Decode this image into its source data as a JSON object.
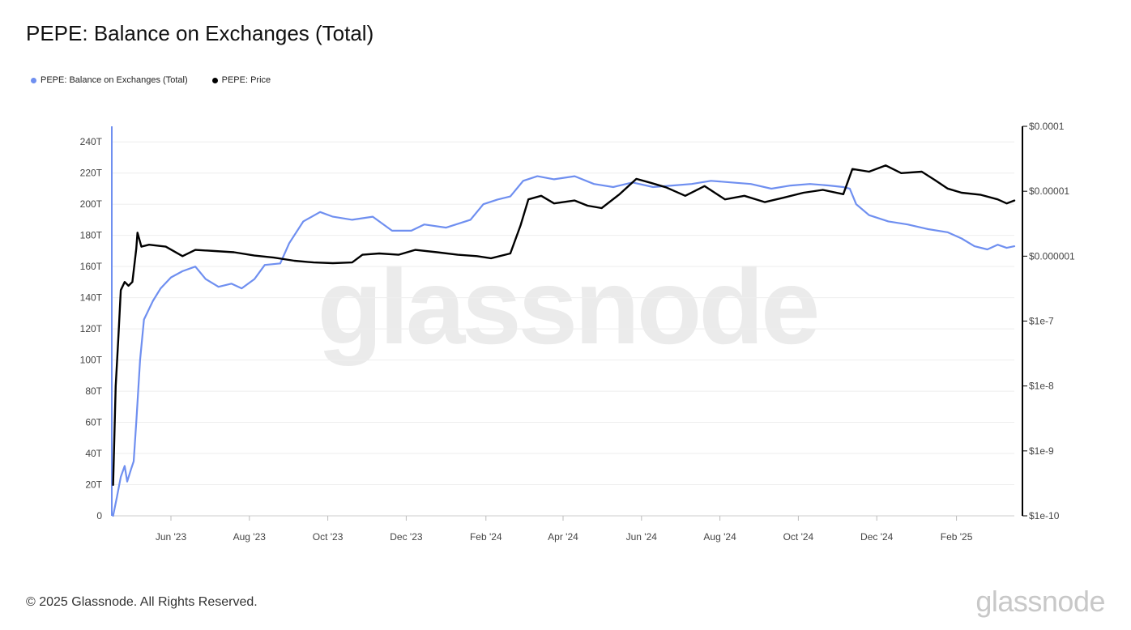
{
  "title": "PEPE: Balance on Exchanges (Total)",
  "legend": [
    {
      "label": "PEPE: Balance on Exchanges (Total)",
      "color": "#6f8ff0"
    },
    {
      "label": "PEPE: Price",
      "color": "#000000"
    }
  ],
  "watermark": "glassnode",
  "footer": {
    "copyright": "© 2025 Glassnode. All Rights Reserved.",
    "brand": "glassnode"
  },
  "chart_data": {
    "type": "line",
    "x_ticks": [
      "Jun '23",
      "Aug '23",
      "Oct '23",
      "Dec '23",
      "Feb '24",
      "Apr '24",
      "Jun '24",
      "Aug '24",
      "Oct '24",
      "Dec '24",
      "Feb '25"
    ],
    "x_range": [
      "2023-04-16",
      "2025-03-18"
    ],
    "y_left": {
      "ticks": [
        "0",
        "20T",
        "40T",
        "60T",
        "80T",
        "100T",
        "120T",
        "140T",
        "160T",
        "180T",
        "200T",
        "220T",
        "240T"
      ],
      "range": [
        0,
        250
      ],
      "unit": "T"
    },
    "y_right": {
      "scale": "log",
      "ticks": [
        "$1e-10",
        "$1e-9",
        "$1e-8",
        "$1e-7",
        "$0.000001",
        "$0.00001",
        "$0.0001"
      ],
      "range": [
        1e-10,
        0.0001
      ]
    },
    "grid": true,
    "legend_position": "top-left",
    "series": [
      {
        "name": "PEPE: Balance on Exchanges (Total)",
        "axis": "left",
        "color": "#6f8ff0",
        "points": [
          [
            "2023-04-17",
            0
          ],
          [
            "2023-04-20",
            12
          ],
          [
            "2023-04-23",
            25
          ],
          [
            "2023-04-26",
            32
          ],
          [
            "2023-04-28",
            22
          ],
          [
            "2023-05-01",
            30
          ],
          [
            "2023-05-03",
            35
          ],
          [
            "2023-05-05",
            60
          ],
          [
            "2023-05-08",
            100
          ],
          [
            "2023-05-11",
            126
          ],
          [
            "2023-05-18",
            138
          ],
          [
            "2023-05-24",
            146
          ],
          [
            "2023-06-01",
            153
          ],
          [
            "2023-06-10",
            157
          ],
          [
            "2023-06-20",
            160
          ],
          [
            "2023-06-28",
            152
          ],
          [
            "2023-07-08",
            147
          ],
          [
            "2023-07-18",
            149
          ],
          [
            "2023-07-26",
            146
          ],
          [
            "2023-08-05",
            152
          ],
          [
            "2023-08-13",
            161
          ],
          [
            "2023-08-25",
            162
          ],
          [
            "2023-09-01",
            175
          ],
          [
            "2023-09-12",
            189
          ],
          [
            "2023-09-25",
            195
          ],
          [
            "2023-10-05",
            192
          ],
          [
            "2023-10-20",
            190
          ],
          [
            "2023-11-05",
            192
          ],
          [
            "2023-11-20",
            183
          ],
          [
            "2023-12-05",
            183
          ],
          [
            "2023-12-15",
            187
          ],
          [
            "2024-01-01",
            185
          ],
          [
            "2024-01-20",
            190
          ],
          [
            "2024-01-30",
            200
          ],
          [
            "2024-02-10",
            203
          ],
          [
            "2024-02-20",
            205
          ],
          [
            "2024-03-01",
            215
          ],
          [
            "2024-03-12",
            218
          ],
          [
            "2024-03-25",
            216
          ],
          [
            "2024-04-10",
            218
          ],
          [
            "2024-04-25",
            213
          ],
          [
            "2024-05-10",
            211
          ],
          [
            "2024-05-25",
            214
          ],
          [
            "2024-06-10",
            211
          ],
          [
            "2024-06-25",
            212
          ],
          [
            "2024-07-10",
            213
          ],
          [
            "2024-07-25",
            215
          ],
          [
            "2024-08-10",
            214
          ],
          [
            "2024-08-25",
            213
          ],
          [
            "2024-09-10",
            210
          ],
          [
            "2024-09-25",
            212
          ],
          [
            "2024-10-10",
            213
          ],
          [
            "2024-10-25",
            212
          ],
          [
            "2024-11-05",
            211
          ],
          [
            "2024-11-10",
            210
          ],
          [
            "2024-11-15",
            200
          ],
          [
            "2024-11-25",
            193
          ],
          [
            "2024-12-10",
            189
          ],
          [
            "2024-12-25",
            187
          ],
          [
            "2025-01-10",
            184
          ],
          [
            "2025-01-25",
            182
          ],
          [
            "2025-02-05",
            178
          ],
          [
            "2025-02-15",
            173
          ],
          [
            "2025-02-25",
            171
          ],
          [
            "2025-03-05",
            174
          ],
          [
            "2025-03-12",
            172
          ],
          [
            "2025-03-18",
            173
          ]
        ]
      },
      {
        "name": "PEPE: Price",
        "axis": "right",
        "color": "#000000",
        "points": [
          [
            "2023-04-17",
            3e-10
          ],
          [
            "2023-04-19",
            1e-08
          ],
          [
            "2023-04-21",
            5e-08
          ],
          [
            "2023-04-23",
            3e-07
          ],
          [
            "2023-04-26",
            4e-07
          ],
          [
            "2023-04-29",
            3.5e-07
          ],
          [
            "2023-05-02",
            4e-07
          ],
          [
            "2023-05-05",
            1.3e-06
          ],
          [
            "2023-05-06",
            2.3e-06
          ],
          [
            "2023-05-09",
            1.4e-06
          ],
          [
            "2023-05-15",
            1.5e-06
          ],
          [
            "2023-05-28",
            1.4e-06
          ],
          [
            "2023-06-10",
            1e-06
          ],
          [
            "2023-06-20",
            1.25e-06
          ],
          [
            "2023-07-05",
            1.2e-06
          ],
          [
            "2023-07-20",
            1.15e-06
          ],
          [
            "2023-08-05",
            1.02e-06
          ],
          [
            "2023-08-20",
            9.5e-07
          ],
          [
            "2023-09-05",
            8.5e-07
          ],
          [
            "2023-09-20",
            8e-07
          ],
          [
            "2023-10-05",
            7.8e-07
          ],
          [
            "2023-10-20",
            8e-07
          ],
          [
            "2023-10-28",
            1.05e-06
          ],
          [
            "2023-11-10",
            1.1e-06
          ],
          [
            "2023-11-25",
            1.05e-06
          ],
          [
            "2023-12-08",
            1.25e-06
          ],
          [
            "2023-12-25",
            1.15e-06
          ],
          [
            "2024-01-10",
            1.05e-06
          ],
          [
            "2024-01-25",
            1e-06
          ],
          [
            "2024-02-05",
            9.3e-07
          ],
          [
            "2024-02-20",
            1.1e-06
          ],
          [
            "2024-02-28",
            3e-06
          ],
          [
            "2024-03-05",
            7.5e-06
          ],
          [
            "2024-03-15",
            8.5e-06
          ],
          [
            "2024-03-25",
            6.5e-06
          ],
          [
            "2024-04-10",
            7.2e-06
          ],
          [
            "2024-04-20",
            6e-06
          ],
          [
            "2024-05-01",
            5.5e-06
          ],
          [
            "2024-05-15",
            9e-06
          ],
          [
            "2024-05-28",
            1.55e-05
          ],
          [
            "2024-06-08",
            1.35e-05
          ],
          [
            "2024-06-20",
            1.15e-05
          ],
          [
            "2024-07-05",
            8.5e-06
          ],
          [
            "2024-07-20",
            1.2e-05
          ],
          [
            "2024-08-05",
            7.5e-06
          ],
          [
            "2024-08-20",
            8.5e-06
          ],
          [
            "2024-09-05",
            6.8e-06
          ],
          [
            "2024-09-20",
            8e-06
          ],
          [
            "2024-10-05",
            9.5e-06
          ],
          [
            "2024-10-20",
            1.05e-05
          ],
          [
            "2024-11-05",
            9e-06
          ],
          [
            "2024-11-12",
            2.2e-05
          ],
          [
            "2024-11-25",
            2e-05
          ],
          [
            "2024-12-08",
            2.5e-05
          ],
          [
            "2024-12-20",
            1.9e-05
          ],
          [
            "2025-01-05",
            2e-05
          ],
          [
            "2025-01-15",
            1.5e-05
          ],
          [
            "2025-01-25",
            1.1e-05
          ],
          [
            "2025-02-05",
            9.5e-06
          ],
          [
            "2025-02-20",
            8.8e-06
          ],
          [
            "2025-03-05",
            7.5e-06
          ],
          [
            "2025-03-12",
            6.5e-06
          ],
          [
            "2025-03-18",
            7.2e-06
          ]
        ]
      }
    ]
  }
}
